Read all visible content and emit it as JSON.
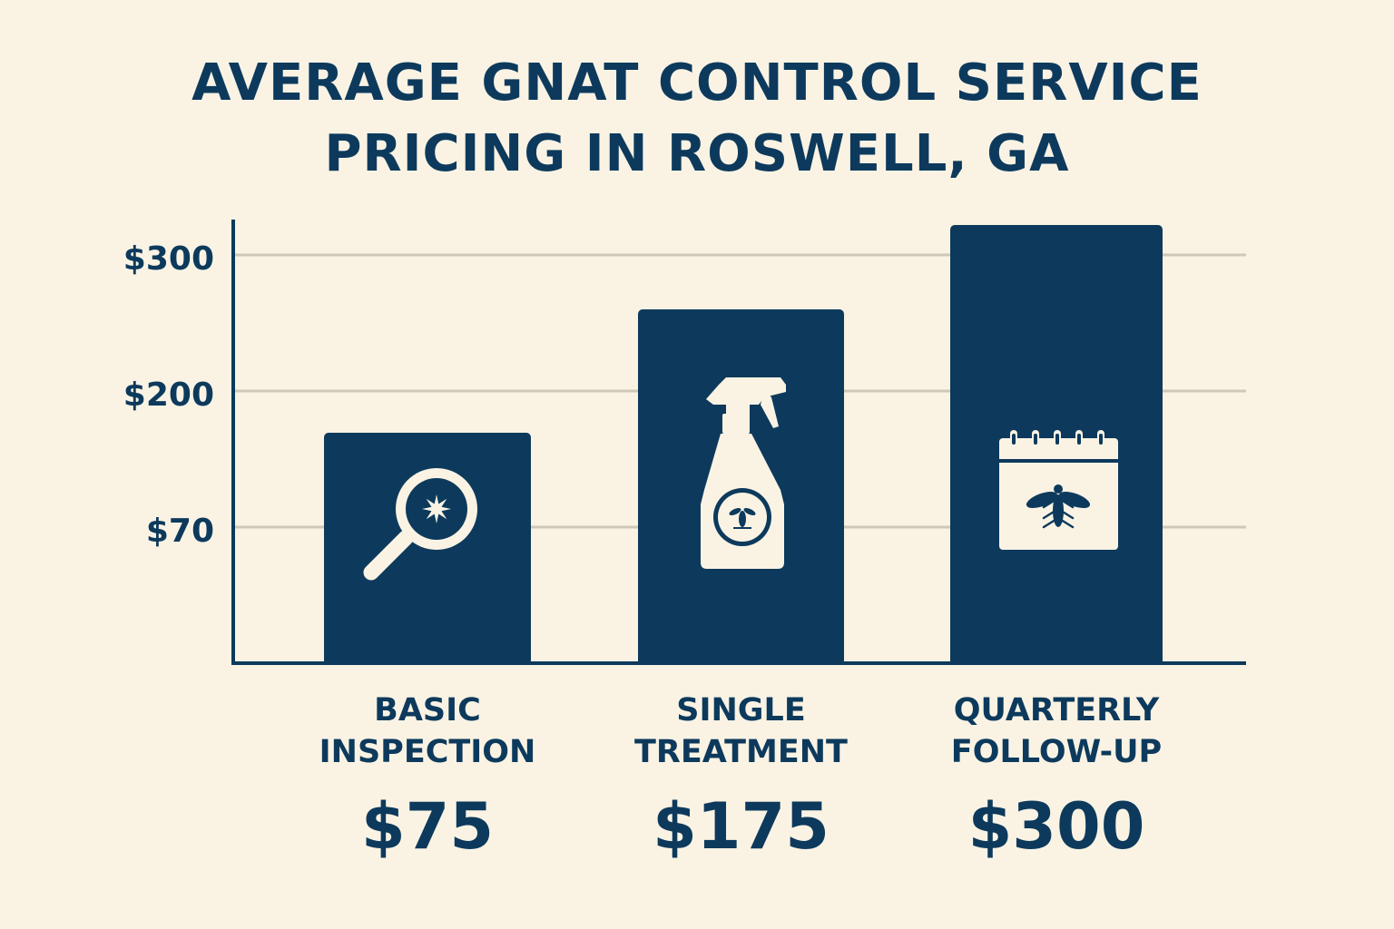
{
  "title_lines": [
    "AVERAGE GNAT CONTROL SERVICE",
    "PRICING IN ROSWELL, GA"
  ],
  "colors": {
    "background": "#faf3e4",
    "bar": "#0d3a5c",
    "grid": "#cfc8b6",
    "icon": "#faf3e4"
  },
  "chart_data": {
    "type": "bar",
    "title": "AVERAGE GNAT CONTROL SERVICE PRICING IN ROSWELL, GA",
    "categories": [
      [
        "BASIC",
        "INSPECTION"
      ],
      [
        "SINGLE",
        "TREATMENT"
      ],
      [
        "QUARTERLY",
        "FOLLOW-UP"
      ]
    ],
    "values": [
      75,
      175,
      300
    ],
    "value_labels": [
      "$75",
      "$175",
      "$300"
    ],
    "icons": [
      "magnifier-gnat-icon",
      "spray-bottle-icon",
      "calendar-gnat-icon"
    ],
    "y_ticks": [
      {
        "label": "$70",
        "value": 70
      },
      {
        "label": "$200",
        "value": 200
      },
      {
        "label": "$300",
        "value": 300
      }
    ],
    "grid": true,
    "xlabel": "",
    "ylabel": ""
  }
}
